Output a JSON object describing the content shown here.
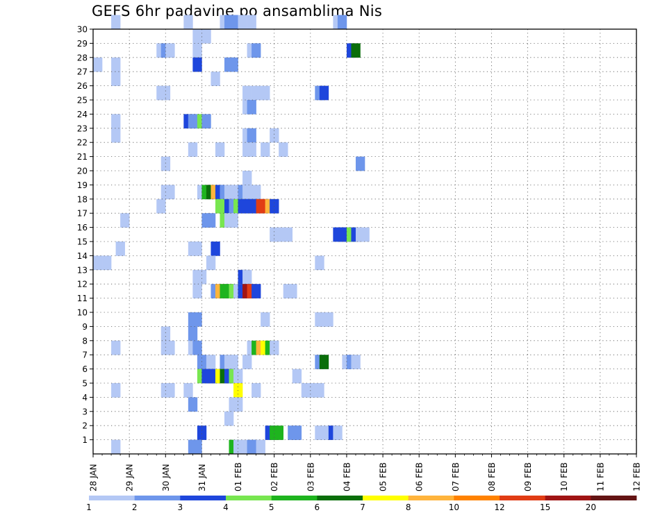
{
  "chart_data": {
    "type": "heatmap",
    "title": "GEFS 6hr padavine po ansamblima Nis",
    "xlabel": "",
    "ylabel": "",
    "x_tick_labels": [
      "28 JAN",
      "29 JAN",
      "30 JAN",
      "31 JAN",
      "01 FEB",
      "02 FEB",
      "03 FEB",
      "04 FEB",
      "05 FEB",
      "06 FEB",
      "07 FEB",
      "08 FEB",
      "09 FEB",
      "10 FEB",
      "11 FEB",
      "12 FEB"
    ],
    "y_tick_labels": [
      "1",
      "2",
      "3",
      "4",
      "5",
      "6",
      "7",
      "8",
      "9",
      "10",
      "11",
      "12",
      "13",
      "14",
      "15",
      "16",
      "17",
      "18",
      "19",
      "20",
      "21",
      "22",
      "23",
      "24",
      "25",
      "26",
      "27",
      "28",
      "29",
      "30"
    ],
    "xlim_steps": [
      0,
      60
    ],
    "ylim": [
      0,
      30
    ],
    "grid": true,
    "color_levels": [
      "1",
      "2",
      "3",
      "4",
      "5",
      "6",
      "7",
      "8",
      "10",
      "12",
      "15",
      "20"
    ],
    "colors": [
      "#b4c8f5",
      "#6e96eb",
      "#1e46dc",
      "#78e650",
      "#1eb41e",
      "#0a6e0a",
      "#ffff00",
      "#ffb43c",
      "#ff8200",
      "#e13c14",
      "#a01414",
      "#641414"
    ],
    "cell_units": "6-hour step index (from 28 JAN 00Z) and ensemble member; value = color class index",
    "cells": [
      [
        2,
        30,
        0
      ],
      [
        10,
        30,
        0
      ],
      [
        14,
        30,
        0
      ],
      [
        14.5,
        30,
        1
      ],
      [
        15,
        30,
        1
      ],
      [
        16,
        30,
        0
      ],
      [
        17,
        30,
        0
      ],
      [
        26.5,
        30,
        0
      ],
      [
        27,
        30,
        1
      ],
      [
        11,
        29,
        0
      ],
      [
        12,
        29,
        0
      ],
      [
        7,
        28,
        0
      ],
      [
        7.5,
        28,
        1
      ],
      [
        8,
        28,
        0
      ],
      [
        11,
        28,
        0
      ],
      [
        17,
        28,
        0
      ],
      [
        17.5,
        28,
        1
      ],
      [
        28,
        28,
        2
      ],
      [
        28.5,
        28,
        5
      ],
      [
        0,
        27,
        0
      ],
      [
        2,
        27,
        0
      ],
      [
        11,
        27,
        2
      ],
      [
        14.5,
        27,
        1
      ],
      [
        15,
        27,
        1
      ],
      [
        2,
        26,
        0
      ],
      [
        13,
        26,
        0
      ],
      [
        7,
        25,
        0
      ],
      [
        7.5,
        25,
        0
      ],
      [
        16.5,
        25,
        0
      ],
      [
        17.5,
        25,
        0
      ],
      [
        18.5,
        25,
        0
      ],
      [
        24.5,
        25,
        1
      ],
      [
        25,
        25,
        2
      ],
      [
        16.5,
        24,
        0
      ],
      [
        17,
        24,
        1
      ],
      [
        2,
        23,
        0
      ],
      [
        10,
        23,
        2
      ],
      [
        10.5,
        23,
        1
      ],
      [
        11,
        23,
        1
      ],
      [
        11.5,
        23,
        3
      ],
      [
        12,
        23,
        1
      ],
      [
        2,
        22,
        0
      ],
      [
        16.5,
        22,
        0
      ],
      [
        17,
        22,
        1
      ],
      [
        19.5,
        22,
        0
      ],
      [
        10.5,
        21,
        0
      ],
      [
        13.5,
        21,
        0
      ],
      [
        16.5,
        21,
        0
      ],
      [
        17,
        21,
        0
      ],
      [
        18.5,
        21,
        0
      ],
      [
        20.5,
        21,
        0
      ],
      [
        7.5,
        20,
        0
      ],
      [
        29,
        20,
        1
      ],
      [
        16.5,
        19,
        0
      ],
      [
        7.5,
        18,
        0
      ],
      [
        8,
        18,
        0
      ],
      [
        11.5,
        18,
        0
      ],
      [
        12,
        18,
        4
      ],
      [
        12.5,
        18,
        5
      ],
      [
        13,
        18,
        7
      ],
      [
        13.5,
        18,
        2
      ],
      [
        14,
        18,
        1
      ],
      [
        14.5,
        18,
        0
      ],
      [
        15,
        18,
        0
      ],
      [
        15.5,
        18,
        0
      ],
      [
        16,
        18,
        1
      ],
      [
        16.5,
        18,
        0
      ],
      [
        17,
        18,
        0
      ],
      [
        17.5,
        18,
        0
      ],
      [
        7,
        17,
        0
      ],
      [
        13.5,
        17,
        3
      ],
      [
        14,
        17,
        3
      ],
      [
        14.5,
        17,
        2
      ],
      [
        15,
        17,
        1
      ],
      [
        15.5,
        17,
        3
      ],
      [
        16,
        17,
        2
      ],
      [
        16.5,
        17,
        2
      ],
      [
        17,
        17,
        2
      ],
      [
        17.5,
        17,
        2
      ],
      [
        18,
        17,
        9
      ],
      [
        18.5,
        17,
        9
      ],
      [
        19,
        17,
        7
      ],
      [
        19.5,
        17,
        2
      ],
      [
        3,
        16,
        0
      ],
      [
        12,
        16,
        1
      ],
      [
        12.5,
        16,
        1
      ],
      [
        14,
        16,
        3
      ],
      [
        14.5,
        16,
        0
      ],
      [
        15,
        16,
        0
      ],
      [
        19.5,
        15,
        0
      ],
      [
        20,
        15,
        0
      ],
      [
        21,
        15,
        0
      ],
      [
        26.5,
        15,
        2
      ],
      [
        27,
        15,
        2
      ],
      [
        27.5,
        15,
        2
      ],
      [
        28,
        15,
        3
      ],
      [
        28.5,
        15,
        2
      ],
      [
        29,
        15,
        0
      ],
      [
        29.5,
        15,
        0
      ],
      [
        2.5,
        14,
        0
      ],
      [
        10.5,
        14,
        0
      ],
      [
        11,
        14,
        0
      ],
      [
        13,
        14,
        2
      ],
      [
        0,
        13,
        0
      ],
      [
        1,
        13,
        0
      ],
      [
        12.5,
        13,
        0
      ],
      [
        24.5,
        13,
        0
      ],
      [
        11,
        12,
        0
      ],
      [
        11.5,
        12,
        0
      ],
      [
        16,
        12,
        2
      ],
      [
        16.5,
        12,
        0
      ],
      [
        11,
        11,
        0
      ],
      [
        13,
        11,
        1
      ],
      [
        13.5,
        11,
        7
      ],
      [
        14,
        11,
        4
      ],
      [
        14.5,
        11,
        4
      ],
      [
        15,
        11,
        3
      ],
      [
        15.5,
        11,
        0
      ],
      [
        16,
        11,
        2
      ],
      [
        16.5,
        11,
        10
      ],
      [
        17,
        11,
        9
      ],
      [
        17.5,
        11,
        2
      ],
      [
        21,
        11,
        0
      ],
      [
        21.5,
        11,
        0
      ],
      [
        10.5,
        9,
        1
      ],
      [
        11,
        9,
        1
      ],
      [
        18.5,
        9,
        0
      ],
      [
        24.5,
        9,
        0
      ],
      [
        25,
        9,
        0
      ],
      [
        25.5,
        9,
        0
      ],
      [
        7.5,
        8,
        0
      ],
      [
        10.5,
        8,
        1
      ],
      [
        2,
        7,
        0
      ],
      [
        7.5,
        7,
        0
      ],
      [
        8,
        7,
        0
      ],
      [
        10.5,
        7,
        0
      ],
      [
        11,
        7,
        1
      ],
      [
        17,
        7,
        0
      ],
      [
        17.5,
        7,
        4
      ],
      [
        18,
        7,
        7
      ],
      [
        18.5,
        7,
        6
      ],
      [
        19,
        7,
        4
      ],
      [
        19.5,
        7,
        0
      ],
      [
        11.5,
        6,
        1
      ],
      [
        12.5,
        6,
        0
      ],
      [
        14,
        6,
        1
      ],
      [
        14.5,
        6,
        0
      ],
      [
        15,
        6,
        0
      ],
      [
        16.5,
        6,
        0
      ],
      [
        24.5,
        6,
        1
      ],
      [
        25,
        6,
        5
      ],
      [
        27.5,
        6,
        0
      ],
      [
        28,
        6,
        1
      ],
      [
        28.5,
        6,
        0
      ],
      [
        11.5,
        5,
        3
      ],
      [
        12,
        5,
        2
      ],
      [
        12.5,
        5,
        2
      ],
      [
        13,
        5,
        2
      ],
      [
        13.5,
        5,
        6
      ],
      [
        14,
        5,
        5
      ],
      [
        14.5,
        5,
        2
      ],
      [
        15,
        5,
        3
      ],
      [
        15.5,
        5,
        0
      ],
      [
        22,
        5,
        0
      ],
      [
        2,
        4,
        0
      ],
      [
        7.5,
        4,
        0
      ],
      [
        8,
        4,
        0
      ],
      [
        10,
        4,
        0
      ],
      [
        15.5,
        4,
        6
      ],
      [
        17.5,
        4,
        0
      ],
      [
        23,
        4,
        0
      ],
      [
        23.5,
        4,
        0
      ],
      [
        24,
        4,
        0
      ],
      [
        24.5,
        4,
        0
      ],
      [
        10.5,
        3,
        1
      ],
      [
        15,
        3,
        0
      ],
      [
        15.5,
        3,
        0
      ],
      [
        14.5,
        2,
        0
      ],
      [
        11.5,
        1,
        2
      ],
      [
        19,
        1,
        2
      ],
      [
        19.5,
        1,
        4
      ],
      [
        20,
        1,
        4
      ],
      [
        21.5,
        1,
        1
      ],
      [
        22,
        1,
        1
      ],
      [
        24.5,
        1,
        0
      ],
      [
        25.5,
        1,
        0
      ],
      [
        26,
        1,
        2
      ],
      [
        26.5,
        1,
        0
      ],
      [
        2,
        0,
        0
      ],
      [
        10.5,
        0,
        1
      ],
      [
        11,
        0,
        1
      ],
      [
        15,
        0,
        4
      ],
      [
        15.5,
        0,
        0
      ],
      [
        16.5,
        0,
        0
      ],
      [
        17,
        0,
        1
      ],
      [
        17.5,
        0,
        1
      ],
      [
        18,
        0,
        0
      ]
    ]
  }
}
